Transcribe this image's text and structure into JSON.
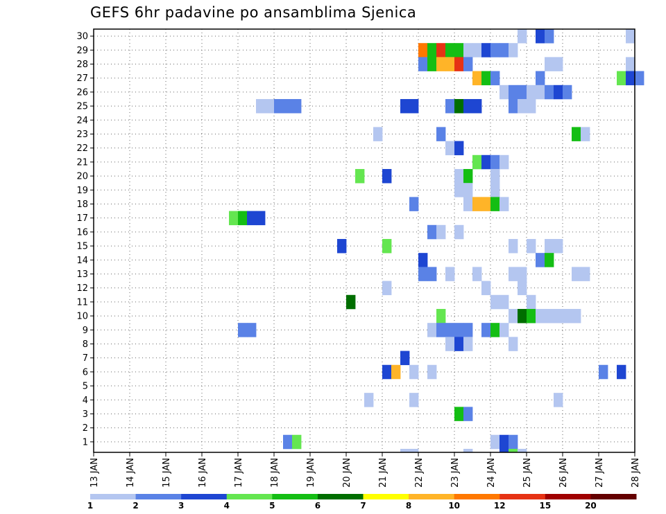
{
  "chart_data": {
    "type": "heatmap",
    "title": "GEFS 6hr padavine po ansamblima Sjenica",
    "x_tick_labels": [
      "13 JAN",
      "14 JAN",
      "15 JAN",
      "16 JAN",
      "17 JAN",
      "18 JAN",
      "19 JAN",
      "20 JAN",
      "21 JAN",
      "22 JAN",
      "23 JAN",
      "24 JAN",
      "25 JAN",
      "26 JAN",
      "27 JAN",
      "28 JAN"
    ],
    "y_tick_labels": [
      "1",
      "2",
      "3",
      "4",
      "5",
      "6",
      "7",
      "8",
      "9",
      "10",
      "11",
      "12",
      "13",
      "14",
      "15",
      "16",
      "17",
      "18",
      "19",
      "20",
      "21",
      "22",
      "23",
      "24",
      "25",
      "26",
      "27",
      "28",
      "29",
      "30"
    ],
    "x_range_days": [
      13,
      28
    ],
    "y_range_members": [
      0,
      30
    ],
    "grid": true,
    "legend": {
      "position": "bottom",
      "labels": [
        "1",
        "2",
        "3",
        "4",
        "5",
        "6",
        "7",
        "8",
        "10",
        "12",
        "15",
        "20"
      ],
      "colors": [
        "#b4c6f0",
        "#5a82e6",
        "#1e46d2",
        "#64e650",
        "#14be14",
        "#006e00",
        "#ffff00",
        "#ffb428",
        "#ff7800",
        "#e63214",
        "#a00000",
        "#640000"
      ]
    },
    "cells": [
      {
        "member": 30,
        "day": 24.75,
        "cls": 1
      },
      {
        "member": 30,
        "day": 25.25,
        "cls": 3
      },
      {
        "member": 30,
        "day": 25.5,
        "cls": 2
      },
      {
        "member": 30,
        "day": 27.75,
        "cls": 1
      },
      {
        "member": 29,
        "day": 22.0,
        "cls": 9
      },
      {
        "member": 29,
        "day": 22.25,
        "cls": 5
      },
      {
        "member": 29,
        "day": 22.5,
        "cls": 10
      },
      {
        "member": 29,
        "day": 22.75,
        "cls": 5
      },
      {
        "member": 29,
        "day": 23.0,
        "cls": 5
      },
      {
        "member": 29,
        "day": 23.25,
        "cls": 1
      },
      {
        "member": 29,
        "day": 23.5,
        "cls": 1
      },
      {
        "member": 29,
        "day": 23.75,
        "cls": 3
      },
      {
        "member": 29,
        "day": 24.0,
        "cls": 2
      },
      {
        "member": 29,
        "day": 24.25,
        "cls": 2
      },
      {
        "member": 29,
        "day": 24.5,
        "cls": 1
      },
      {
        "member": 28,
        "day": 22.0,
        "cls": 2
      },
      {
        "member": 28,
        "day": 22.25,
        "cls": 5
      },
      {
        "member": 28,
        "day": 22.5,
        "cls": 8
      },
      {
        "member": 28,
        "day": 22.75,
        "cls": 8
      },
      {
        "member": 28,
        "day": 23.0,
        "cls": 10
      },
      {
        "member": 28,
        "day": 23.25,
        "cls": 2
      },
      {
        "member": 28,
        "day": 25.5,
        "cls": 1
      },
      {
        "member": 28,
        "day": 25.75,
        "cls": 1
      },
      {
        "member": 28,
        "day": 27.75,
        "cls": 1
      },
      {
        "member": 27,
        "day": 23.5,
        "cls": 8
      },
      {
        "member": 27,
        "day": 23.75,
        "cls": 5
      },
      {
        "member": 27,
        "day": 24.0,
        "cls": 2
      },
      {
        "member": 27,
        "day": 25.25,
        "cls": 2
      },
      {
        "member": 27,
        "day": 27.5,
        "cls": 4
      },
      {
        "member": 27,
        "day": 27.75,
        "cls": 3
      },
      {
        "member": 27,
        "day": 28.0,
        "cls": 2
      },
      {
        "member": 26,
        "day": 24.25,
        "cls": 1
      },
      {
        "member": 26,
        "day": 24.5,
        "cls": 2
      },
      {
        "member": 26,
        "day": 24.75,
        "cls": 2
      },
      {
        "member": 26,
        "day": 25.0,
        "cls": 1
      },
      {
        "member": 26,
        "day": 25.25,
        "cls": 1
      },
      {
        "member": 26,
        "day": 25.5,
        "cls": 2
      },
      {
        "member": 26,
        "day": 25.75,
        "cls": 3
      },
      {
        "member": 26,
        "day": 26.0,
        "cls": 2
      },
      {
        "member": 25,
        "day": 17.5,
        "cls": 1
      },
      {
        "member": 25,
        "day": 17.75,
        "cls": 1
      },
      {
        "member": 25,
        "day": 18.0,
        "cls": 2
      },
      {
        "member": 25,
        "day": 18.25,
        "cls": 2
      },
      {
        "member": 25,
        "day": 18.5,
        "cls": 2
      },
      {
        "member": 25,
        "day": 21.5,
        "cls": 3
      },
      {
        "member": 25,
        "day": 21.75,
        "cls": 3
      },
      {
        "member": 25,
        "day": 22.75,
        "cls": 2
      },
      {
        "member": 25,
        "day": 23.0,
        "cls": 6
      },
      {
        "member": 25,
        "day": 23.25,
        "cls": 3
      },
      {
        "member": 25,
        "day": 23.5,
        "cls": 3
      },
      {
        "member": 25,
        "day": 24.5,
        "cls": 2
      },
      {
        "member": 25,
        "day": 24.75,
        "cls": 1
      },
      {
        "member": 25,
        "day": 25.0,
        "cls": 1
      },
      {
        "member": 23,
        "day": 20.75,
        "cls": 1
      },
      {
        "member": 23,
        "day": 22.5,
        "cls": 2
      },
      {
        "member": 23,
        "day": 26.25,
        "cls": 5
      },
      {
        "member": 23,
        "day": 26.5,
        "cls": 1
      },
      {
        "member": 22,
        "day": 22.75,
        "cls": 1
      },
      {
        "member": 22,
        "day": 23.0,
        "cls": 3
      },
      {
        "member": 21,
        "day": 23.5,
        "cls": 4
      },
      {
        "member": 21,
        "day": 23.75,
        "cls": 3
      },
      {
        "member": 21,
        "day": 24.0,
        "cls": 2
      },
      {
        "member": 21,
        "day": 24.25,
        "cls": 1
      },
      {
        "member": 20,
        "day": 20.25,
        "cls": 4
      },
      {
        "member": 20,
        "day": 21.0,
        "cls": 3
      },
      {
        "member": 20,
        "day": 23.0,
        "cls": 1
      },
      {
        "member": 20,
        "day": 23.25,
        "cls": 5
      },
      {
        "member": 20,
        "day": 24.0,
        "cls": 1
      },
      {
        "member": 19,
        "day": 23.0,
        "cls": 1
      },
      {
        "member": 19,
        "day": 23.25,
        "cls": 1
      },
      {
        "member": 19,
        "day": 24.0,
        "cls": 1
      },
      {
        "member": 18,
        "day": 21.75,
        "cls": 2
      },
      {
        "member": 18,
        "day": 23.25,
        "cls": 1
      },
      {
        "member": 18,
        "day": 23.5,
        "cls": 8
      },
      {
        "member": 18,
        "day": 23.75,
        "cls": 8
      },
      {
        "member": 18,
        "day": 24.0,
        "cls": 5
      },
      {
        "member": 18,
        "day": 24.25,
        "cls": 1
      },
      {
        "member": 17,
        "day": 16.75,
        "cls": 4
      },
      {
        "member": 17,
        "day": 17.0,
        "cls": 5
      },
      {
        "member": 17,
        "day": 17.25,
        "cls": 3
      },
      {
        "member": 17,
        "day": 17.5,
        "cls": 3
      },
      {
        "member": 16,
        "day": 22.25,
        "cls": 2
      },
      {
        "member": 16,
        "day": 22.5,
        "cls": 1
      },
      {
        "member": 16,
        "day": 23.0,
        "cls": 1
      },
      {
        "member": 15,
        "day": 19.75,
        "cls": 3
      },
      {
        "member": 15,
        "day": 21.0,
        "cls": 4
      },
      {
        "member": 15,
        "day": 24.5,
        "cls": 1
      },
      {
        "member": 15,
        "day": 25.0,
        "cls": 1
      },
      {
        "member": 15,
        "day": 25.5,
        "cls": 1
      },
      {
        "member": 15,
        "day": 25.75,
        "cls": 1
      },
      {
        "member": 14,
        "day": 22.0,
        "cls": 3
      },
      {
        "member": 14,
        "day": 25.25,
        "cls": 2
      },
      {
        "member": 14,
        "day": 25.5,
        "cls": 5
      },
      {
        "member": 13,
        "day": 22.0,
        "cls": 2
      },
      {
        "member": 13,
        "day": 22.25,
        "cls": 2
      },
      {
        "member": 13,
        "day": 22.75,
        "cls": 1
      },
      {
        "member": 13,
        "day": 23.5,
        "cls": 1
      },
      {
        "member": 13,
        "day": 24.5,
        "cls": 1
      },
      {
        "member": 13,
        "day": 24.75,
        "cls": 1
      },
      {
        "member": 13,
        "day": 26.25,
        "cls": 1
      },
      {
        "member": 13,
        "day": 26.5,
        "cls": 1
      },
      {
        "member": 12,
        "day": 21.0,
        "cls": 1
      },
      {
        "member": 12,
        "day": 23.75,
        "cls": 1
      },
      {
        "member": 12,
        "day": 24.75,
        "cls": 1
      },
      {
        "member": 11,
        "day": 20.0,
        "cls": 6
      },
      {
        "member": 11,
        "day": 24.0,
        "cls": 1
      },
      {
        "member": 11,
        "day": 24.25,
        "cls": 1
      },
      {
        "member": 11,
        "day": 25.0,
        "cls": 1
      },
      {
        "member": 10,
        "day": 22.5,
        "cls": 4
      },
      {
        "member": 10,
        "day": 24.5,
        "cls": 1
      },
      {
        "member": 10,
        "day": 24.75,
        "cls": 6
      },
      {
        "member": 10,
        "day": 25.0,
        "cls": 5
      },
      {
        "member": 10,
        "day": 25.25,
        "cls": 1
      },
      {
        "member": 10,
        "day": 25.5,
        "cls": 1
      },
      {
        "member": 10,
        "day": 25.75,
        "cls": 1
      },
      {
        "member": 10,
        "day": 26.0,
        "cls": 1
      },
      {
        "member": 10,
        "day": 26.25,
        "cls": 1
      },
      {
        "member": 9,
        "day": 17.0,
        "cls": 2
      },
      {
        "member": 9,
        "day": 17.25,
        "cls": 2
      },
      {
        "member": 9,
        "day": 22.25,
        "cls": 1
      },
      {
        "member": 9,
        "day": 22.5,
        "cls": 2
      },
      {
        "member": 9,
        "day": 22.75,
        "cls": 2
      },
      {
        "member": 9,
        "day": 23.0,
        "cls": 2
      },
      {
        "member": 9,
        "day": 23.25,
        "cls": 2
      },
      {
        "member": 9,
        "day": 23.75,
        "cls": 2
      },
      {
        "member": 9,
        "day": 24.0,
        "cls": 5
      },
      {
        "member": 9,
        "day": 24.25,
        "cls": 1
      },
      {
        "member": 8,
        "day": 22.75,
        "cls": 1
      },
      {
        "member": 8,
        "day": 23.0,
        "cls": 3
      },
      {
        "member": 8,
        "day": 23.25,
        "cls": 1
      },
      {
        "member": 8,
        "day": 24.5,
        "cls": 1
      },
      {
        "member": 7,
        "day": 21.5,
        "cls": 3
      },
      {
        "member": 6,
        "day": 21.0,
        "cls": 3
      },
      {
        "member": 6,
        "day": 21.25,
        "cls": 8
      },
      {
        "member": 6,
        "day": 21.75,
        "cls": 1
      },
      {
        "member": 6,
        "day": 22.25,
        "cls": 1
      },
      {
        "member": 6,
        "day": 27.0,
        "cls": 2
      },
      {
        "member": 6,
        "day": 27.5,
        "cls": 3
      },
      {
        "member": 4,
        "day": 20.5,
        "cls": 1
      },
      {
        "member": 4,
        "day": 21.75,
        "cls": 1
      },
      {
        "member": 4,
        "day": 25.75,
        "cls": 1
      },
      {
        "member": 3,
        "day": 23.0,
        "cls": 5
      },
      {
        "member": 3,
        "day": 23.25,
        "cls": 2
      },
      {
        "member": 1,
        "day": 18.25,
        "cls": 2
      },
      {
        "member": 1,
        "day": 18.5,
        "cls": 4
      },
      {
        "member": 1,
        "day": 24.0,
        "cls": 1
      },
      {
        "member": 1,
        "day": 24.25,
        "cls": 3
      },
      {
        "member": 1,
        "day": 24.5,
        "cls": 2
      },
      {
        "member": 0,
        "day": 21.5,
        "cls": 1
      },
      {
        "member": 0,
        "day": 21.75,
        "cls": 1
      },
      {
        "member": 0,
        "day": 23.25,
        "cls": 1
      },
      {
        "member": 0,
        "day": 24.25,
        "cls": 3
      },
      {
        "member": 0,
        "day": 24.5,
        "cls": 4
      },
      {
        "member": 0,
        "day": 24.75,
        "cls": 1
      }
    ]
  }
}
